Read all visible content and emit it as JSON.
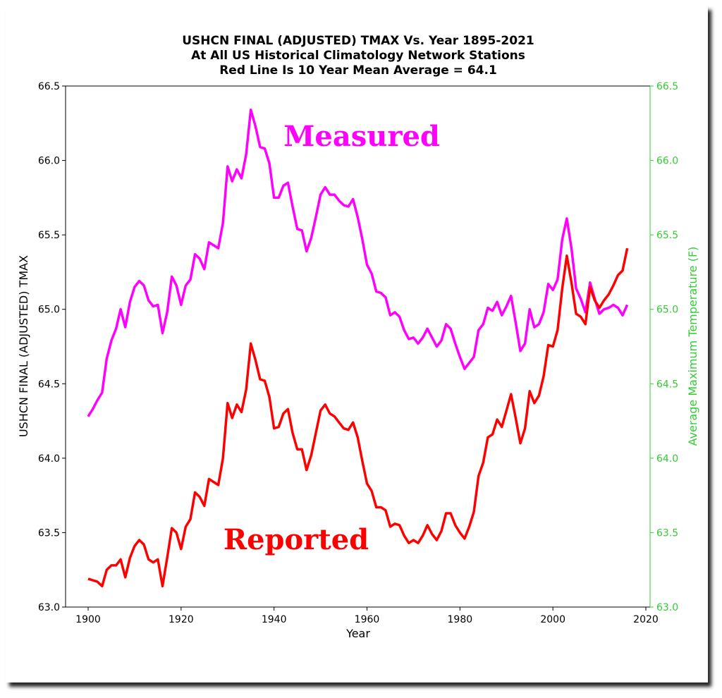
{
  "chart_data": {
    "type": "line",
    "title": [
      "USHCN FINAL (ADJUSTED) TMAX Vs. Year 1895-2021",
      "At All US Historical Climatology Network Stations",
      "Red Line Is 10 Year Mean  Average = 64.1"
    ],
    "xlabel": "Year",
    "ylabel": "USHCN FINAL (ADJUSTED) TMAX",
    "ylabel_right": "Average Maximum Temperature (F)",
    "xlim": [
      1895,
      2021
    ],
    "ylim": [
      63.0,
      66.5
    ],
    "xticks": [
      "1900",
      "1920",
      "1940",
      "1960",
      "1980",
      "2000",
      "2020"
    ],
    "yticks": [
      "63.0",
      "63.5",
      "64.0",
      "64.5",
      "65.0",
      "65.5",
      "66.0",
      "66.5"
    ],
    "grid": false,
    "colors": {
      "measured": "#ff00ff",
      "reported": "#ff0000",
      "right_axis": "#33cc33"
    },
    "annotations": [
      {
        "text": "Measured",
        "series": "measured",
        "x": 1938,
        "y": 66.2
      },
      {
        "text": "Reported",
        "series": "reported",
        "x": 1924,
        "y": 63.5
      }
    ],
    "x_start": 1900,
    "series": [
      {
        "name": "Measured",
        "color": "#ff00ff",
        "values": [
          64.28,
          64.33,
          64.39,
          64.44,
          64.67,
          64.79,
          64.87,
          65.0,
          64.88,
          65.05,
          65.15,
          65.19,
          65.16,
          65.06,
          65.02,
          65.03,
          64.84,
          64.98,
          65.22,
          65.16,
          65.03,
          65.16,
          65.2,
          65.37,
          65.34,
          65.27,
          65.45,
          65.43,
          65.41,
          65.58,
          65.96,
          65.86,
          65.94,
          65.88,
          66.04,
          66.34,
          66.23,
          66.09,
          66.08,
          65.98,
          65.75,
          65.75,
          65.83,
          65.85,
          65.69,
          65.54,
          65.53,
          65.39,
          65.48,
          65.62,
          65.77,
          65.82,
          65.77,
          65.77,
          65.73,
          65.7,
          65.69,
          65.74,
          65.62,
          65.47,
          65.3,
          65.24,
          65.12,
          65.11,
          65.08,
          64.96,
          64.98,
          64.95,
          64.86,
          64.8,
          64.81,
          64.77,
          64.81,
          64.87,
          64.81,
          64.75,
          64.79,
          64.9,
          64.87,
          64.77,
          64.68,
          64.6,
          64.64,
          64.68,
          64.86,
          64.9,
          65.01,
          64.99,
          65.05,
          64.96,
          65.02,
          65.09,
          64.91,
          64.72,
          64.77,
          65.0,
          64.88,
          64.9,
          64.98,
          65.17,
          65.13,
          65.2,
          65.47,
          65.61,
          65.41,
          65.14,
          65.07,
          64.98,
          65.18,
          65.07,
          64.97,
          65.0,
          65.01,
          65.03,
          65.01,
          64.96,
          65.03
        ]
      },
      {
        "name": "Reported",
        "color": "#ff0000",
        "values": [
          63.19,
          63.18,
          63.17,
          63.14,
          63.25,
          63.28,
          63.28,
          63.32,
          63.2,
          63.33,
          63.41,
          63.45,
          63.42,
          63.32,
          63.3,
          63.32,
          63.14,
          63.33,
          63.53,
          63.5,
          63.39,
          63.54,
          63.59,
          63.77,
          63.74,
          63.68,
          63.86,
          63.84,
          63.82,
          64.0,
          64.37,
          64.27,
          64.36,
          64.31,
          64.46,
          64.77,
          64.66,
          64.53,
          64.52,
          64.41,
          64.2,
          64.21,
          64.3,
          64.33,
          64.17,
          64.06,
          64.06,
          63.92,
          64.02,
          64.17,
          64.32,
          64.36,
          64.3,
          64.28,
          64.24,
          64.2,
          64.19,
          64.24,
          64.14,
          63.98,
          63.83,
          63.78,
          63.67,
          63.67,
          63.65,
          63.54,
          63.56,
          63.55,
          63.48,
          63.43,
          63.45,
          63.43,
          63.48,
          63.55,
          63.49,
          63.45,
          63.51,
          63.63,
          63.63,
          63.55,
          63.5,
          63.46,
          63.54,
          63.64,
          63.88,
          63.97,
          64.14,
          64.16,
          64.26,
          64.21,
          64.32,
          64.43,
          64.27,
          64.1,
          64.2,
          64.45,
          64.37,
          64.42,
          64.55,
          64.76,
          64.75,
          64.86,
          65.14,
          65.36,
          65.18,
          64.97,
          64.95,
          64.9,
          65.15,
          65.06,
          65.01,
          65.06,
          65.1,
          65.16,
          65.23,
          65.26,
          65.41
        ]
      }
    ]
  }
}
